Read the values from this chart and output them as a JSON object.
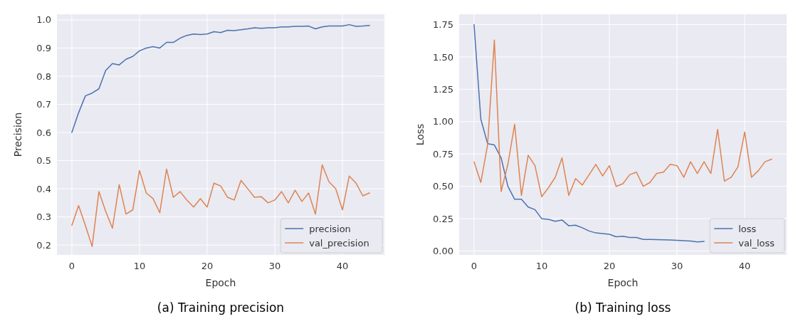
{
  "chart_data": [
    {
      "type": "line",
      "title": "(a) Training precision",
      "xlabel": "Epoch",
      "ylabel": "Precision",
      "x": [
        0,
        1,
        2,
        3,
        4,
        5,
        6,
        7,
        8,
        9,
        10,
        11,
        12,
        13,
        14,
        15,
        16,
        17,
        18,
        19,
        20,
        21,
        22,
        23,
        24,
        25,
        26,
        27,
        28,
        29,
        30,
        31,
        32,
        33,
        34,
        35,
        36,
        37,
        38,
        39,
        40,
        41,
        42,
        43,
        44
      ],
      "series": [
        {
          "name": "precision",
          "color": "#4c72b0",
          "values": [
            0.6,
            0.67,
            0.73,
            0.74,
            0.755,
            0.82,
            0.845,
            0.84,
            0.86,
            0.87,
            0.89,
            0.9,
            0.905,
            0.9,
            0.92,
            0.92,
            0.935,
            0.945,
            0.95,
            0.948,
            0.95,
            0.958,
            0.955,
            0.963,
            0.962,
            0.965,
            0.968,
            0.972,
            0.97,
            0.972,
            0.972,
            0.975,
            0.975,
            0.977,
            0.977,
            0.978,
            0.968,
            0.975,
            0.978,
            0.978,
            0.978,
            0.983,
            0.977,
            0.978,
            0.98
          ]
        },
        {
          "name": "val_precision",
          "color": "#dd8452",
          "values": [
            0.27,
            0.34,
            0.27,
            0.195,
            0.39,
            0.32,
            0.26,
            0.415,
            0.31,
            0.325,
            0.465,
            0.385,
            0.365,
            0.315,
            0.47,
            0.37,
            0.39,
            0.36,
            0.335,
            0.365,
            0.335,
            0.42,
            0.41,
            0.37,
            0.36,
            0.43,
            0.4,
            0.37,
            0.372,
            0.35,
            0.36,
            0.39,
            0.35,
            0.395,
            0.355,
            0.385,
            0.31,
            0.485,
            0.425,
            0.4,
            0.325,
            0.445,
            0.42,
            0.375,
            0.385
          ]
        }
      ],
      "xlim": [
        -2.2,
        46.2
      ],
      "xticks": [
        0,
        10,
        20,
        30,
        40
      ],
      "ylim": [
        0.165,
        1.02
      ],
      "yticks": [
        {
          "value": 0.2,
          "label": "0.2"
        },
        {
          "value": 0.3,
          "label": "0.3"
        },
        {
          "value": 0.4,
          "label": "0.4"
        },
        {
          "value": 0.5,
          "label": "0.5"
        },
        {
          "value": 0.6,
          "label": "0.6"
        },
        {
          "value": 0.7,
          "label": "0.7"
        },
        {
          "value": 0.8,
          "label": "0.8"
        },
        {
          "value": 0.9,
          "label": "0.9"
        },
        {
          "value": 1.0,
          "label": "1.0"
        }
      ],
      "grid": true,
      "legend": "bottom right"
    },
    {
      "type": "line",
      "title": "(b) Training loss",
      "xlabel": "Epoch",
      "ylabel": "Loss",
      "x": [
        0,
        1,
        2,
        3,
        4,
        5,
        6,
        7,
        8,
        9,
        10,
        11,
        12,
        13,
        14,
        15,
        16,
        17,
        18,
        19,
        20,
        21,
        22,
        23,
        24,
        25,
        26,
        27,
        28,
        29,
        30,
        31,
        32,
        33,
        34,
        35,
        36,
        37,
        38,
        39,
        40,
        41,
        42,
        43,
        44
      ],
      "series": [
        {
          "name": "loss",
          "color": "#4c72b0",
          "values": [
            1.75,
            1.02,
            0.83,
            0.82,
            0.72,
            0.5,
            0.4,
            0.4,
            0.34,
            0.32,
            0.25,
            0.245,
            0.23,
            0.24,
            0.195,
            0.2,
            0.18,
            0.155,
            0.14,
            0.135,
            0.13,
            0.11,
            0.115,
            0.105,
            0.105,
            0.09,
            0.09,
            0.088,
            0.087,
            0.085,
            0.083,
            0.08,
            0.077,
            0.07,
            0.075,
            null,
            null,
            null,
            null,
            null,
            null,
            null,
            null,
            null,
            null
          ]
        },
        {
          "name": "val_loss",
          "color": "#dd8452",
          "values": [
            0.69,
            0.53,
            0.82,
            1.63,
            0.46,
            0.67,
            0.98,
            0.43,
            0.74,
            0.66,
            0.42,
            0.49,
            0.57,
            0.72,
            0.43,
            0.56,
            0.51,
            0.59,
            0.67,
            0.58,
            0.66,
            0.5,
            0.52,
            0.59,
            0.61,
            0.5,
            0.53,
            0.6,
            0.61,
            0.67,
            0.66,
            0.57,
            0.69,
            0.6,
            0.69,
            0.6,
            0.94,
            0.54,
            0.57,
            0.65,
            0.92,
            0.57,
            0.62,
            0.69,
            0.71
          ]
        }
      ],
      "xlim": [
        -2.2,
        46.2
      ],
      "xticks": [
        0,
        10,
        20,
        30,
        40
      ],
      "ylim": [
        -0.03,
        1.83
      ],
      "yticks": [
        {
          "value": 0,
          "label": "0.00"
        },
        {
          "value": 0.25,
          "label": "0.25"
        },
        {
          "value": 0.5,
          "label": "0.50"
        },
        {
          "value": 0.75,
          "label": "0.75"
        },
        {
          "value": 1.0,
          "label": "1.00"
        },
        {
          "value": 1.25,
          "label": "1.25"
        },
        {
          "value": 1.5,
          "label": "1.50"
        },
        {
          "value": 1.75,
          "label": "1.75"
        }
      ],
      "grid": true,
      "legend": "bottom right"
    }
  ]
}
